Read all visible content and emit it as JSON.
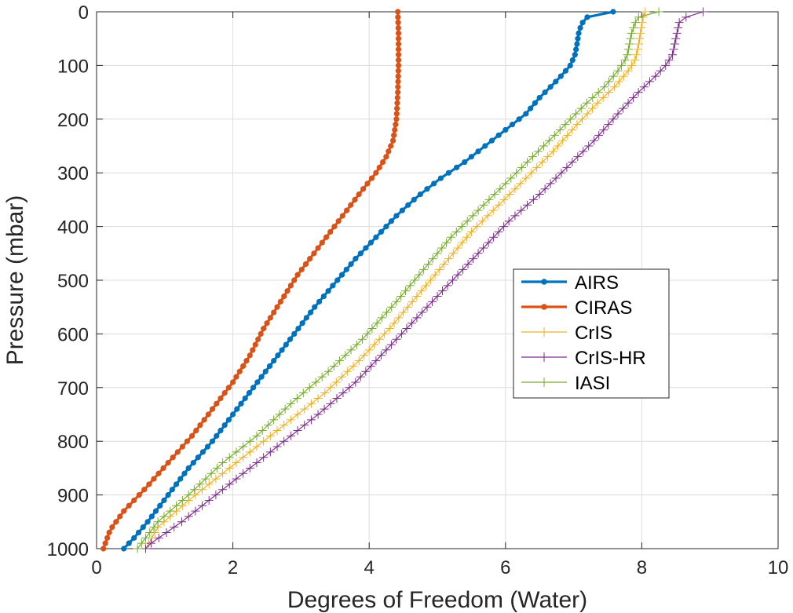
{
  "chart_data": {
    "type": "line",
    "xlabel": "Degrees of Freedom (Water)",
    "ylabel": "Pressure (mbar)",
    "xlim": [
      0,
      10
    ],
    "ylim": [
      0,
      1000
    ],
    "y_reversed": true,
    "grid": true,
    "legend_position": "center-right",
    "x_ticks": [
      "0",
      "2",
      "4",
      "6",
      "8",
      "10"
    ],
    "y_ticks": [
      "0",
      "100",
      "200",
      "300",
      "400",
      "500",
      "600",
      "700",
      "800",
      "900",
      "1000"
    ],
    "series": [
      {
        "name": "AIRS",
        "color": "#0072BD",
        "marker": "dot",
        "line_width": 3.2,
        "points": [
          [
            7.58,
            1
          ],
          [
            7.4,
            2
          ],
          [
            7.25,
            5
          ],
          [
            7.15,
            15
          ],
          [
            7.08,
            35
          ],
          [
            7.05,
            60
          ],
          [
            7.02,
            80
          ],
          [
            6.95,
            100
          ],
          [
            6.85,
            115
          ],
          [
            6.7,
            135
          ],
          [
            6.5,
            160
          ],
          [
            6.3,
            190
          ],
          [
            6.0,
            220
          ],
          [
            5.7,
            250
          ],
          [
            5.4,
            280
          ],
          [
            5.05,
            310
          ],
          [
            4.7,
            345
          ],
          [
            4.4,
            380
          ],
          [
            4.1,
            420
          ],
          [
            3.8,
            460
          ],
          [
            3.5,
            505
          ],
          [
            3.2,
            550
          ],
          [
            2.9,
            600
          ],
          [
            2.6,
            650
          ],
          [
            2.3,
            700
          ],
          [
            2.0,
            750
          ],
          [
            1.7,
            800
          ],
          [
            1.35,
            850
          ],
          [
            1.05,
            900
          ],
          [
            0.75,
            950
          ],
          [
            0.55,
            980
          ],
          [
            0.4,
            1000
          ]
        ]
      },
      {
        "name": "CIRAS",
        "color": "#D95319",
        "marker": "dot",
        "line_width": 3.2,
        "points": [
          [
            4.42,
            1
          ],
          [
            4.43,
            40
          ],
          [
            4.43,
            100
          ],
          [
            4.42,
            150
          ],
          [
            4.4,
            200
          ],
          [
            4.35,
            240
          ],
          [
            4.25,
            270
          ],
          [
            4.1,
            300
          ],
          [
            3.85,
            340
          ],
          [
            3.55,
            390
          ],
          [
            3.25,
            440
          ],
          [
            2.95,
            490
          ],
          [
            2.7,
            540
          ],
          [
            2.45,
            590
          ],
          [
            2.25,
            640
          ],
          [
            2.0,
            690
          ],
          [
            1.7,
            740
          ],
          [
            1.4,
            790
          ],
          [
            1.05,
            840
          ],
          [
            0.7,
            890
          ],
          [
            0.4,
            930
          ],
          [
            0.2,
            965
          ],
          [
            0.1,
            1000
          ]
        ]
      },
      {
        "name": "CrIS",
        "color": "#EDB120",
        "marker": "plus",
        "line_width": 1.2,
        "points": [
          [
            8.05,
            1
          ],
          [
            8.02,
            10
          ],
          [
            7.98,
            40
          ],
          [
            7.95,
            65
          ],
          [
            7.9,
            90
          ],
          [
            7.8,
            110
          ],
          [
            7.6,
            140
          ],
          [
            7.35,
            170
          ],
          [
            7.05,
            210
          ],
          [
            6.7,
            260
          ],
          [
            6.3,
            310
          ],
          [
            5.9,
            360
          ],
          [
            5.5,
            410
          ],
          [
            5.1,
            470
          ],
          [
            4.7,
            530
          ],
          [
            4.3,
            590
          ],
          [
            3.85,
            650
          ],
          [
            3.35,
            710
          ],
          [
            2.85,
            760
          ],
          [
            2.35,
            810
          ],
          [
            1.85,
            860
          ],
          [
            1.35,
            910
          ],
          [
            0.9,
            960
          ],
          [
            0.72,
            1000
          ]
        ]
      },
      {
        "name": "CrIS-HR",
        "color": "#7E2F8E",
        "marker": "plus",
        "line_width": 1.2,
        "points": [
          [
            8.9,
            1
          ],
          [
            8.7,
            5
          ],
          [
            8.55,
            20
          ],
          [
            8.5,
            50
          ],
          [
            8.45,
            80
          ],
          [
            8.35,
            100
          ],
          [
            8.2,
            120
          ],
          [
            7.95,
            150
          ],
          [
            7.65,
            190
          ],
          [
            7.3,
            240
          ],
          [
            6.9,
            290
          ],
          [
            6.5,
            340
          ],
          [
            6.05,
            390
          ],
          [
            5.6,
            450
          ],
          [
            5.15,
            510
          ],
          [
            4.7,
            570
          ],
          [
            4.25,
            630
          ],
          [
            3.8,
            690
          ],
          [
            3.25,
            750
          ],
          [
            2.75,
            800
          ],
          [
            2.25,
            850
          ],
          [
            1.75,
            900
          ],
          [
            1.25,
            950
          ],
          [
            0.8,
            990
          ],
          [
            0.72,
            1000
          ]
        ]
      },
      {
        "name": "IASI",
        "color": "#77AC30",
        "marker": "plus",
        "line_width": 1.2,
        "points": [
          [
            8.25,
            1
          ],
          [
            8.0,
            3
          ],
          [
            7.92,
            15
          ],
          [
            7.85,
            40
          ],
          [
            7.82,
            60
          ],
          [
            7.78,
            85
          ],
          [
            7.65,
            110
          ],
          [
            7.45,
            140
          ],
          [
            7.15,
            175
          ],
          [
            6.8,
            220
          ],
          [
            6.4,
            270
          ],
          [
            6.0,
            320
          ],
          [
            5.6,
            370
          ],
          [
            5.2,
            420
          ],
          [
            4.8,
            480
          ],
          [
            4.4,
            540
          ],
          [
            3.9,
            610
          ],
          [
            3.4,
            670
          ],
          [
            2.85,
            730
          ],
          [
            2.35,
            790
          ],
          [
            1.85,
            840
          ],
          [
            1.35,
            900
          ],
          [
            0.9,
            950
          ],
          [
            0.6,
            1000
          ]
        ]
      }
    ]
  }
}
